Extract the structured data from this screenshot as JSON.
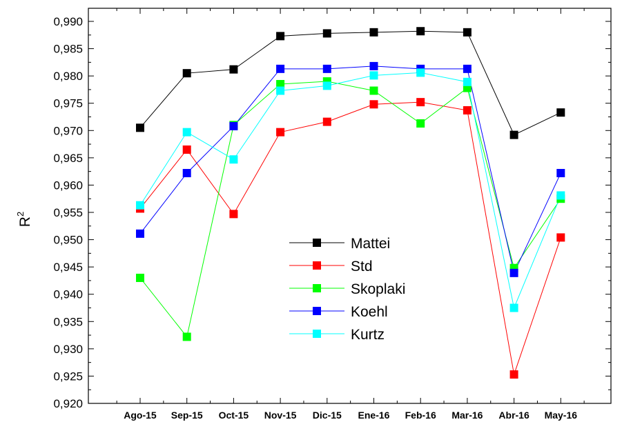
{
  "chart_data": {
    "type": "line",
    "categories": [
      "Ago-15",
      "Sep-15",
      "Oct-15",
      "Nov-15",
      "Dic-15",
      "Ene-16",
      "Feb-16",
      "Mar-16",
      "Abr-16",
      "May-16"
    ],
    "ylabel_base": "R",
    "ylabel_sup": "2",
    "ylim": [
      0.92,
      0.99
    ],
    "yticks": [
      "0,920",
      "0,925",
      "0,930",
      "0,935",
      "0,940",
      "0,945",
      "0,950",
      "0,955",
      "0,960",
      "0,965",
      "0,970",
      "0,975",
      "0,980",
      "0,985",
      "0,990"
    ],
    "grid": false,
    "legend_position": "center",
    "series": [
      {
        "name": "Mattei",
        "color": "#000000",
        "values": [
          0.9705,
          0.9805,
          0.9812,
          0.9873,
          0.9878,
          0.988,
          0.9882,
          0.988,
          0.9692,
          0.9733
        ]
      },
      {
        "name": "Std",
        "color": "#ff0000",
        "values": [
          0.9557,
          0.9665,
          0.9547,
          0.9697,
          0.9716,
          0.9748,
          0.9752,
          0.9737,
          0.9253,
          0.9504
        ]
      },
      {
        "name": "Skoplaki",
        "color": "#00ff00",
        "values": [
          0.943,
          0.9322,
          0.971,
          0.9785,
          0.979,
          0.9773,
          0.9713,
          0.9778,
          0.9448,
          0.9575
        ]
      },
      {
        "name": "Koehl",
        "color": "#0000ff",
        "values": [
          0.9511,
          0.9622,
          0.9708,
          0.9813,
          0.9813,
          0.9818,
          0.9813,
          0.9813,
          0.9439,
          0.9622
        ]
      },
      {
        "name": "Kurtz",
        "color": "#00ffff",
        "values": [
          0.9563,
          0.9697,
          0.9647,
          0.9773,
          0.9782,
          0.9801,
          0.9806,
          0.9789,
          0.9375,
          0.9581
        ]
      }
    ]
  }
}
